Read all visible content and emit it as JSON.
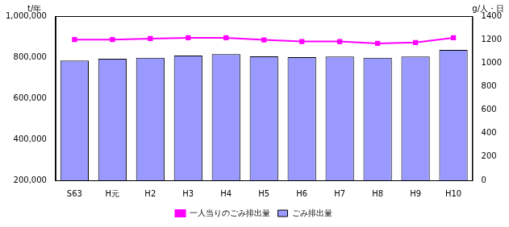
{
  "chart_data": {
    "type": "bar",
    "categories": [
      "S63",
      "H元",
      "H2",
      "H3",
      "H4",
      "H5",
      "H6",
      "H7",
      "H8",
      "H9",
      "H10"
    ],
    "series": [
      {
        "name": "ごみ排出量",
        "type": "bar",
        "color": "#9999ff",
        "values": [
          783000,
          792000,
          797000,
          808000,
          815000,
          804000,
          800000,
          803000,
          797000,
          803000,
          835000
        ]
      },
      {
        "name": "一人当りのごみ排出量",
        "type": "line",
        "axis": "y2",
        "color": "#ff00ff",
        "marker": "square",
        "values": [
          1200,
          1200,
          1208,
          1215,
          1215,
          1197,
          1183,
          1183,
          1167,
          1175,
          1215
        ]
      }
    ],
    "y_label": "t/年",
    "y2_label": "g/人・日",
    "ylim": [
      200000,
      1000000
    ],
    "yticks": [
      {
        "value": 200000,
        "label": "200,000"
      },
      {
        "value": 400000,
        "label": "400,000"
      },
      {
        "value": 600000,
        "label": "600,000"
      },
      {
        "value": 800000,
        "label": "800,000"
      },
      {
        "value": 1000000,
        "label": "1,000,000"
      }
    ],
    "y2lim": [
      0,
      1400
    ],
    "y2ticks": [
      0,
      200,
      400,
      600,
      800,
      1000,
      1200,
      1400
    ],
    "grid": false,
    "legend": "bottom"
  }
}
